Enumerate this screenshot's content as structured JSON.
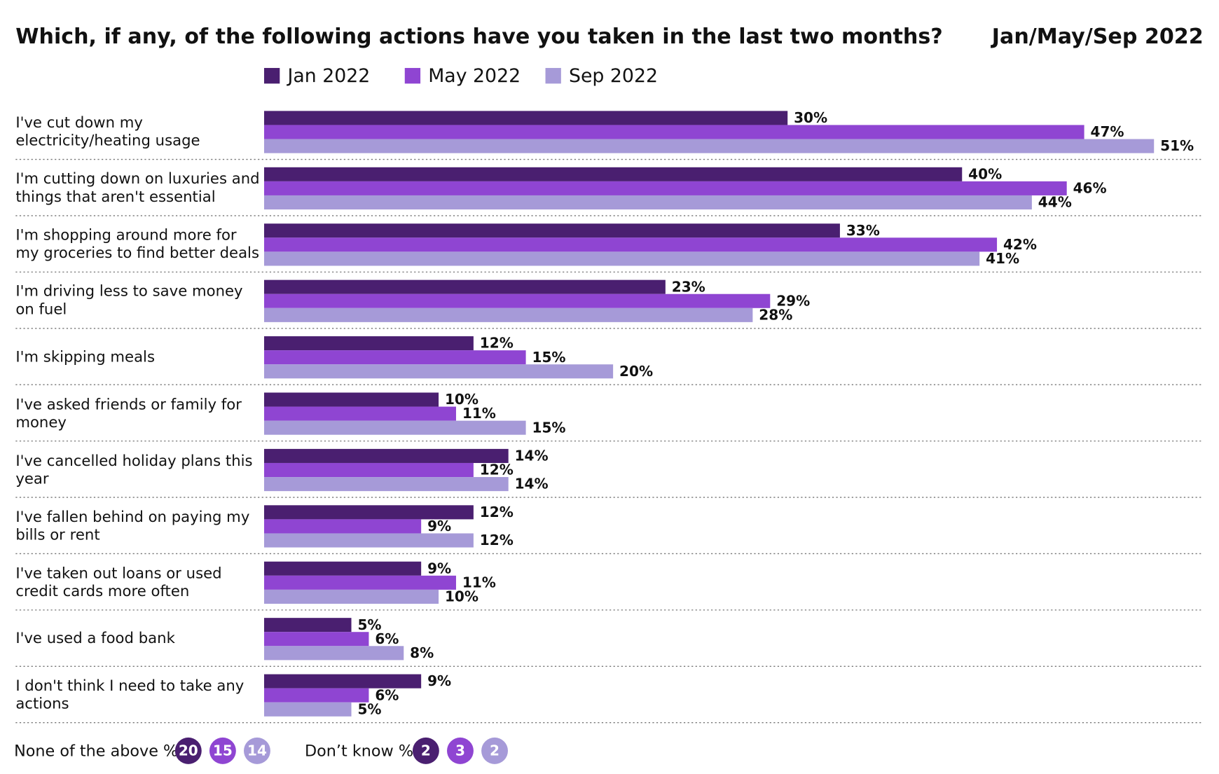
{
  "chart_data": {
    "type": "bar",
    "orientation": "horizontal",
    "title": "Which, if any, of the following actions have you taken in the last two months?",
    "subtitle": "Jan/May/Sep 2022",
    "categories": [
      "I've cut down my electricity/heating usage",
      "I'm cutting down on luxuries and things that aren't essential",
      "I'm shopping around more for my groceries to find better deals",
      "I'm driving less to save money on fuel",
      "I'm skipping meals",
      "I've asked friends or family for money",
      "I've cancelled holiday plans this year",
      "I've fallen behind on paying my bills or rent",
      "I've taken out loans or used credit cards more often",
      "I've used a food bank",
      "I don't think I need to take any actions"
    ],
    "series": [
      {
        "name": "Jan 2022",
        "color": "#4a1f70",
        "values": [
          30,
          40,
          33,
          23,
          12,
          10,
          14,
          12,
          9,
          5,
          9
        ],
        "value_labels": [
          "30%",
          "40%",
          "33%",
          "23%",
          "12%",
          "10%",
          "14%",
          "12%",
          "9%",
          "5%",
          "9%"
        ]
      },
      {
        "name": "May 2022",
        "color": "#8f45d2",
        "values": [
          47,
          46,
          42,
          29,
          15,
          11,
          12,
          9,
          11,
          6,
          6
        ],
        "value_labels": [
          "47%",
          "46%",
          "42%",
          "29%",
          "15%",
          "11%",
          "12%",
          "9%",
          "11%",
          "6%",
          "6%"
        ]
      },
      {
        "name": "Sep 2022",
        "color": "#a69ad8",
        "values": [
          51,
          44,
          41,
          28,
          20,
          15,
          14,
          12,
          10,
          8,
          5
        ],
        "value_labels": [
          "51%",
          "44%",
          "41%",
          "28%",
          "20%",
          "15%",
          "14%",
          "12%",
          "10%",
          "8%",
          "5%"
        ]
      }
    ],
    "footer": [
      {
        "label": "None of the above %",
        "values": [
          20,
          15,
          14
        ]
      },
      {
        "label": "Don’t know %",
        "values": [
          2,
          3,
          2
        ]
      }
    ]
  }
}
